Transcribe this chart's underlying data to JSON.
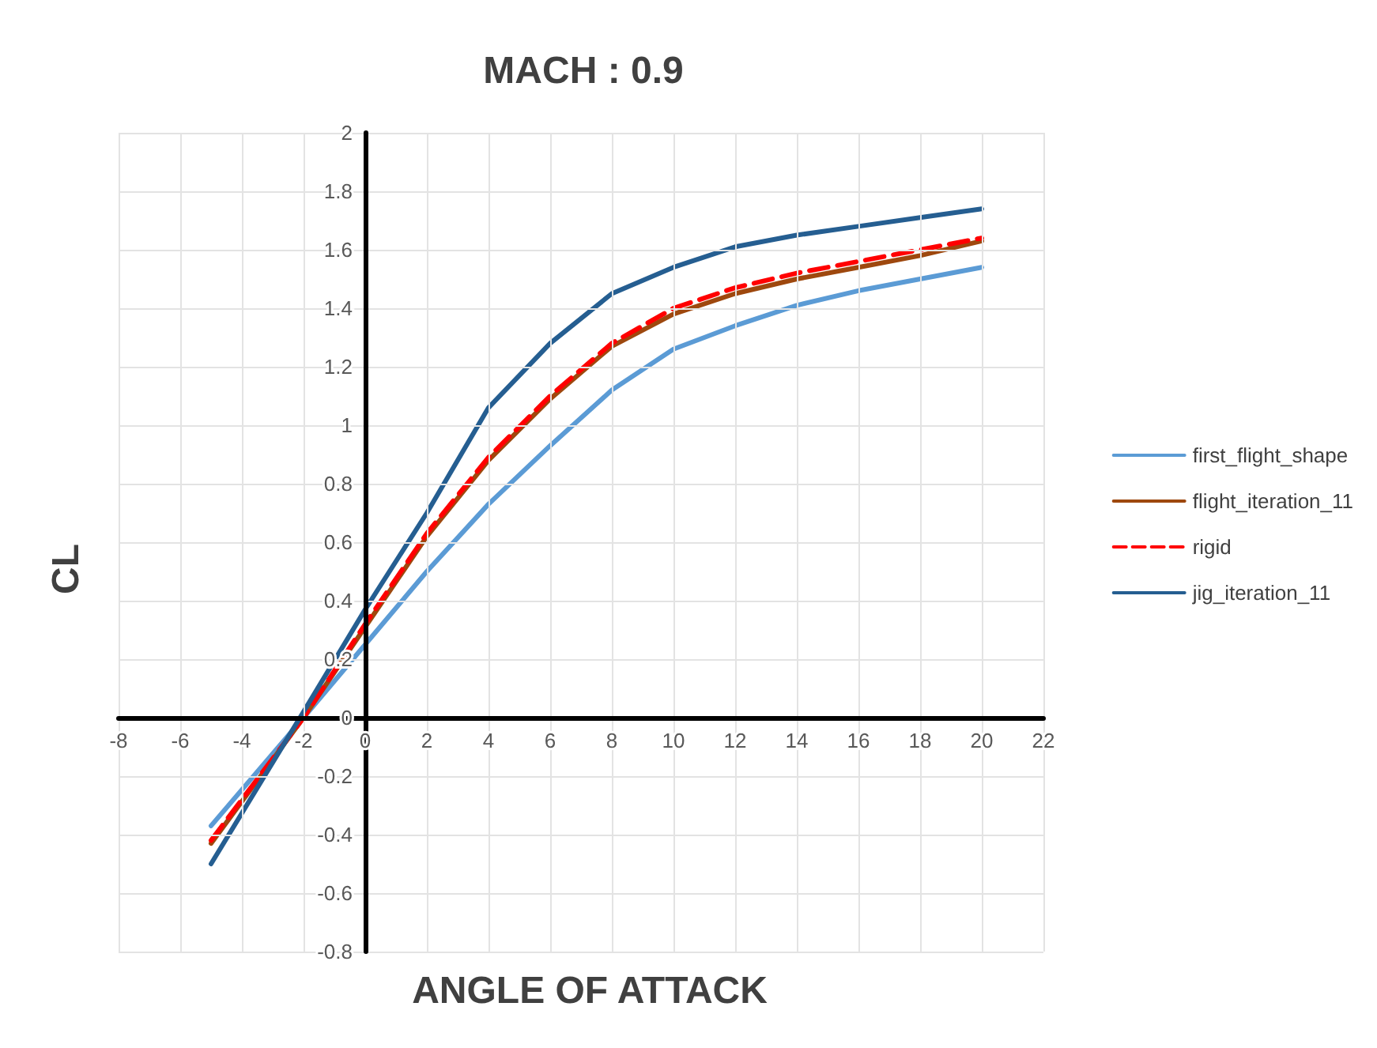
{
  "chart_data": {
    "type": "line",
    "title": "MACH : 0.9",
    "xlabel": "ANGLE OF ATTACK",
    "ylabel": "CL",
    "x": [
      -5,
      -2,
      0,
      2,
      4,
      6,
      8,
      10,
      12,
      14,
      16,
      18,
      20
    ],
    "series": [
      {
        "name": "first_flight_shape",
        "color": "#5b9bd5",
        "values": [
          -0.37,
          0.0,
          0.25,
          0.5,
          0.73,
          0.93,
          1.12,
          1.26,
          1.34,
          1.41,
          1.46,
          1.5,
          1.54
        ]
      },
      {
        "name": "flight_iteration_11",
        "color": "#9e480e",
        "values": [
          -0.43,
          0.0,
          0.31,
          0.62,
          0.88,
          1.09,
          1.27,
          1.38,
          1.45,
          1.5,
          1.54,
          1.58,
          1.63
        ]
      },
      {
        "name": "rigid",
        "color": "#ff0000",
        "line_style": "dashed",
        "values": [
          -0.42,
          0.0,
          0.32,
          0.63,
          0.89,
          1.1,
          1.28,
          1.4,
          1.47,
          1.52,
          1.56,
          1.6,
          1.64
        ]
      },
      {
        "name": "jig_iteration_11",
        "color": "#255e91",
        "values": [
          -0.5,
          0.02,
          0.37,
          0.7,
          1.06,
          1.28,
          1.45,
          1.54,
          1.61,
          1.65,
          1.68,
          1.71,
          1.74
        ]
      }
    ],
    "xlim": [
      -8,
      22
    ],
    "xticks": [
      -8,
      -6,
      -4,
      -2,
      0,
      2,
      4,
      6,
      8,
      10,
      12,
      14,
      16,
      18,
      20,
      22
    ],
    "ylim": [
      -0.8,
      2
    ],
    "yticks": [
      -0.8,
      -0.6,
      -0.4,
      -0.2,
      0,
      0.2,
      0.4,
      0.6,
      0.8,
      1,
      1.2,
      1.4,
      1.6,
      1.8,
      2
    ],
    "grid": true,
    "legend": "right",
    "line_style": "solid",
    "marker": "none"
  }
}
